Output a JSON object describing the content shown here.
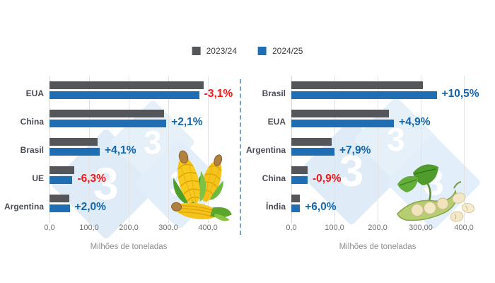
{
  "legend": {
    "items": [
      {
        "label": "2023/24",
        "color": "#54565a"
      },
      {
        "label": "2024/25",
        "color": "#1f6eb4"
      }
    ]
  },
  "colors": {
    "up": "#1166ad",
    "down": "#f51616",
    "series_2023_24": "#54565a",
    "series_2024_25": "#1f6eb4",
    "watermark": "#dfecf8",
    "grid": "#e3e3e3"
  },
  "watermark": {
    "glyph": "3"
  },
  "chart_data": [
    {
      "type": "bar",
      "orientation": "horizontal",
      "commodity": "milho (corn)",
      "categories": [
        "EUA",
        "China",
        "Brasil",
        "UE",
        "Argentina"
      ],
      "series": [
        {
          "name": "2023/24",
          "color": "#54565a",
          "values": [
            390,
            289,
            122,
            62,
            50
          ]
        },
        {
          "name": "2024/25",
          "color": "#1f6eb4",
          "values": [
            378,
            295,
            127,
            58,
            51
          ]
        }
      ],
      "changes": [
        {
          "text": "-3,1%",
          "direction": "down"
        },
        {
          "text": "+2,1%",
          "direction": "up"
        },
        {
          "text": "+4,1%",
          "direction": "up"
        },
        {
          "text": "-6,3%",
          "direction": "down"
        },
        {
          "text": "+2,0%",
          "direction": "up"
        }
      ],
      "x_ticks": [
        "0,0",
        "100,0",
        "200,0",
        "300,0",
        "400,0"
      ],
      "xlim": [
        0,
        400
      ],
      "xlabel": "Milhões de toneladas",
      "grid": true,
      "legend_position": "top-center"
    },
    {
      "type": "bar",
      "orientation": "horizontal",
      "commodity": "soja (soybean)",
      "categories": [
        "Brasil",
        "EUA",
        "Argentina",
        "China",
        "Índia"
      ],
      "series": [
        {
          "name": "2023/24",
          "color": "#54565a",
          "values": [
            305,
            227,
            93,
            38,
            19
          ]
        },
        {
          "name": "2024/25",
          "color": "#1f6eb4",
          "values": [
            337,
            238,
            100,
            37.7,
            20
          ]
        }
      ],
      "changes": [
        {
          "text": "+10,5%",
          "direction": "up"
        },
        {
          "text": "+4,9%",
          "direction": "up"
        },
        {
          "text": "+7,9%",
          "direction": "up"
        },
        {
          "text": "-0,9%",
          "direction": "down"
        },
        {
          "text": "+6,0%",
          "direction": "up"
        }
      ],
      "x_ticks": [
        "0,0",
        "100,0",
        "200,0",
        "300,00",
        "400,0"
      ],
      "xlim": [
        0,
        400
      ],
      "xlabel": "Milhões de toneladas",
      "grid": true,
      "legend_position": "top-center"
    }
  ]
}
